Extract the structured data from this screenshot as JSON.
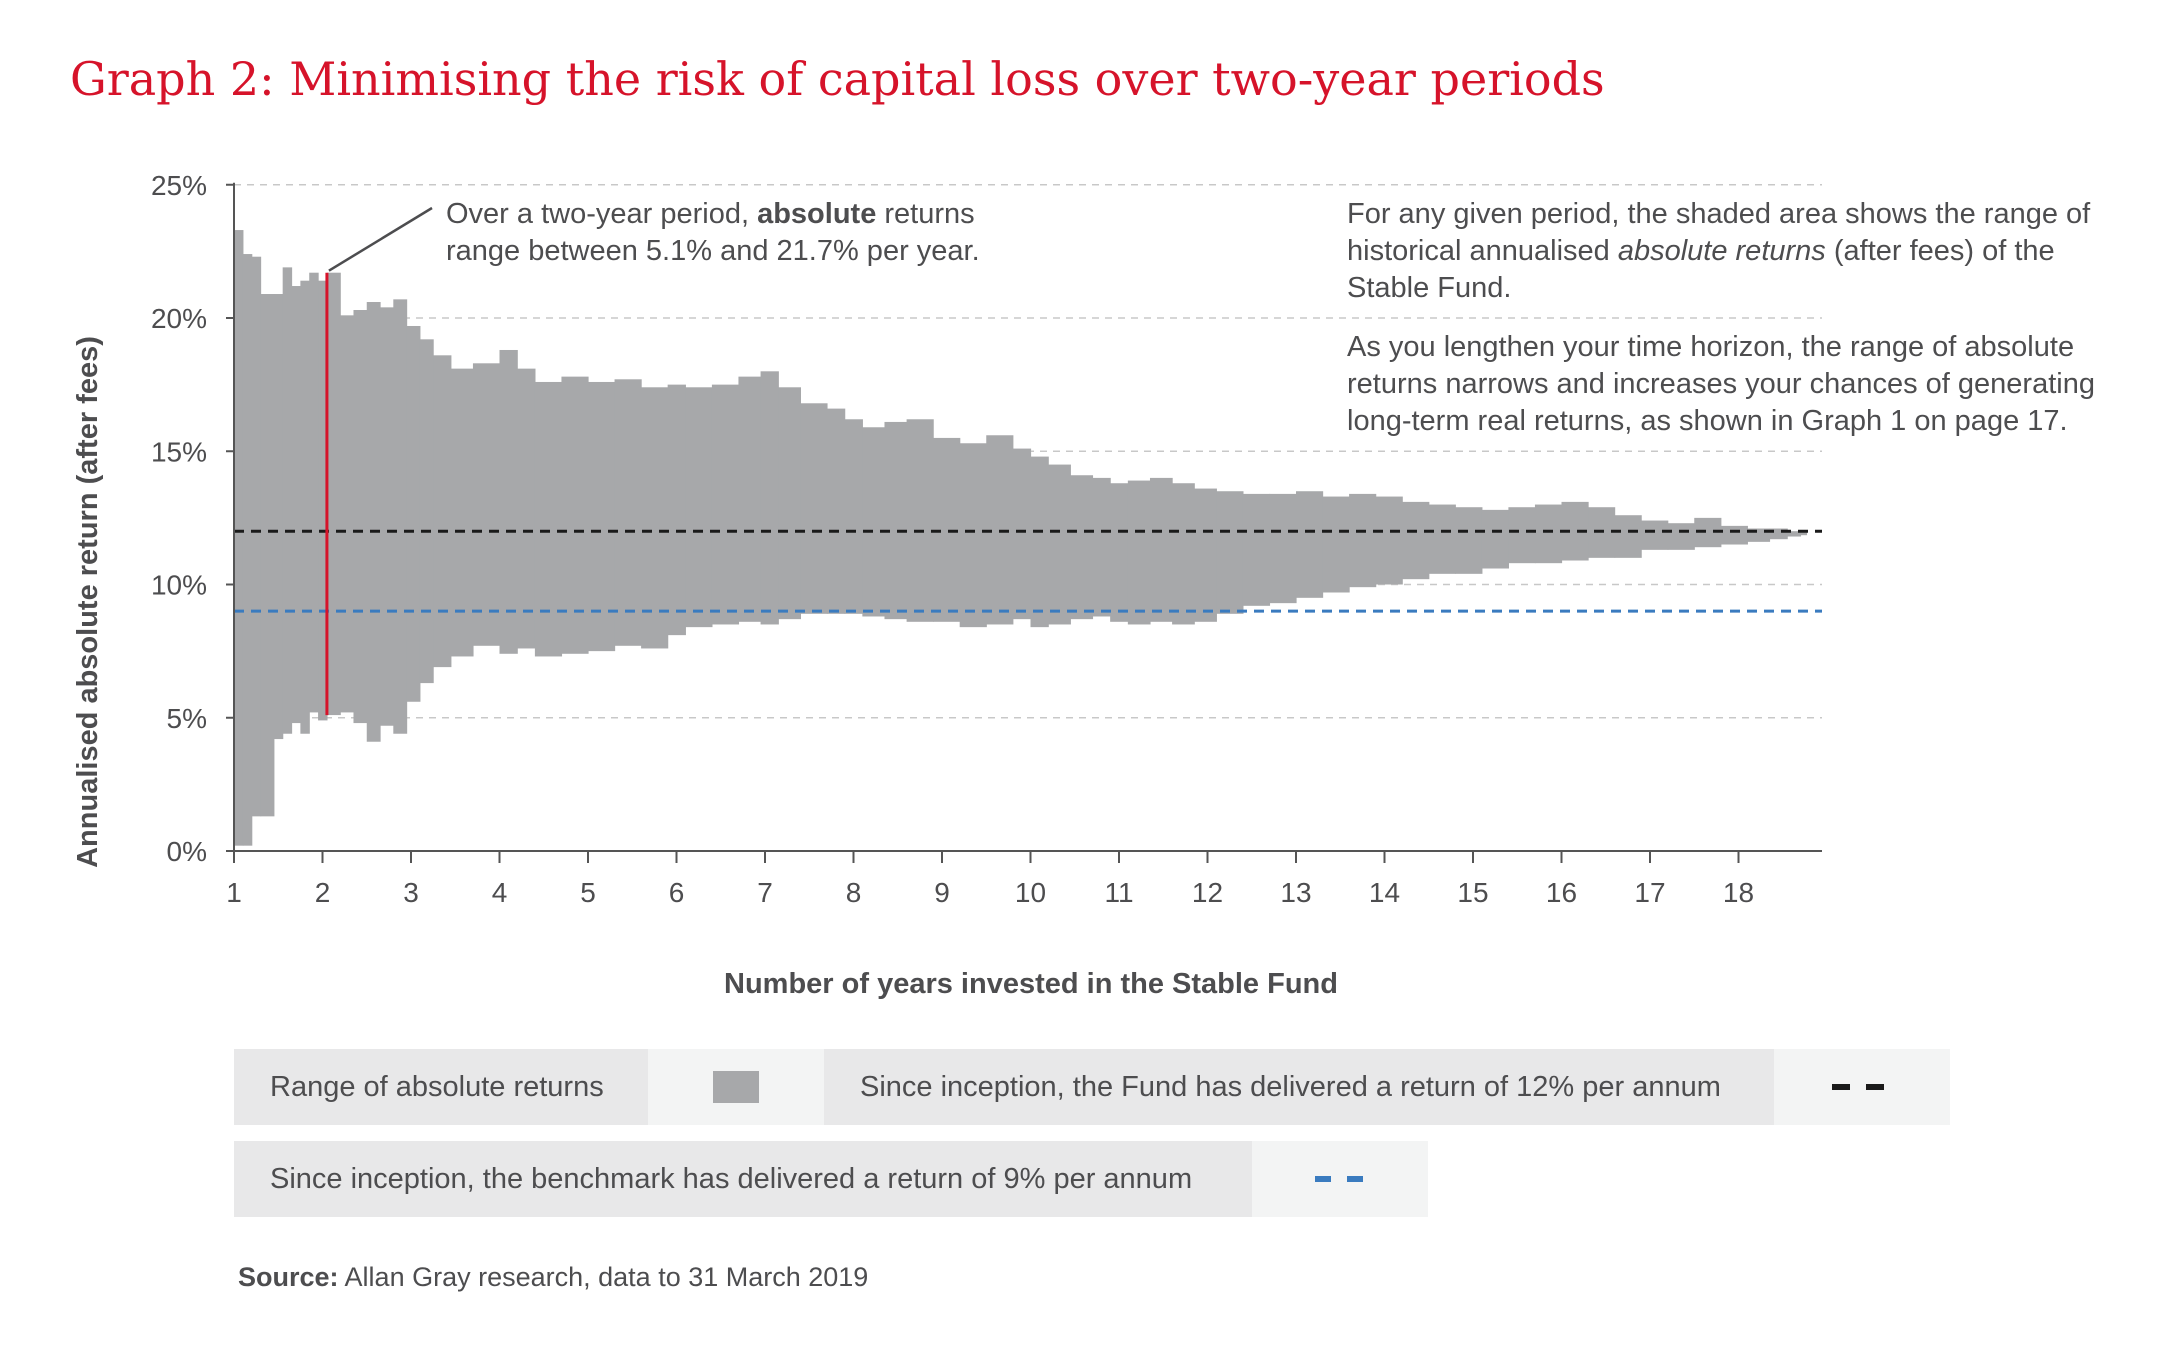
{
  "title": "Graph 2: Minimising the risk of capital loss over two-year periods",
  "annotations": {
    "callout_pre": "Over a two-year period, ",
    "callout_bold": "absolute",
    "callout_post": " returns range between 5.1% and 21.7% per year.",
    "right_p1_pre": "For any given period, the shaded area shows the range of historical annualised ",
    "right_p1_em": "absolute returns",
    "right_p1_post": " (after fees) of the Stable Fund.",
    "right_p2": "As you lengthen your time horizon, the range of absolute returns narrows and increases your chances of generating long-term real returns, as shown in Graph 1 on page 17."
  },
  "legend": {
    "range_label": "Range of absolute returns",
    "fund_label": "Since inception, the Fund has delivered a return of 12% per annum",
    "benchmark_label": "Since inception, the benchmark has delivered a return of 9% per annum"
  },
  "source": {
    "label": "Source:",
    "text": " Allan Gray research, data to 31 March 2019"
  },
  "colors": {
    "title": "#d6132a",
    "range_fill": "#a7a8aa",
    "fund_line": "#1a1a1a",
    "benchmark_line": "#3a7bbf",
    "highlight": "#d6132a",
    "text": "#4d4d4f",
    "grid": "#c8c8c8"
  },
  "chart_data": {
    "type": "area",
    "xlabel": "Number of years invested in the Stable Fund",
    "ylabel": "Annualised absolute return (after fees)",
    "xlim": [
      1,
      19
    ],
    "ylim": [
      0,
      25
    ],
    "xticks": [
      "1",
      "2",
      "3",
      "4",
      "5",
      "6",
      "7",
      "8",
      "9",
      "10",
      "11",
      "12",
      "13",
      "14",
      "15",
      "16",
      "17",
      "18"
    ],
    "yticks": [
      "0%",
      "5%",
      "10%",
      "15%",
      "20%",
      "25%"
    ],
    "grid": "horizontal dashed",
    "series": [
      {
        "name": "Range of absolute returns",
        "points": [
          {
            "x": 1.0,
            "max": 23.3,
            "min": 0.2
          },
          {
            "x": 1.1,
            "max": 22.4,
            "min": 0.2
          },
          {
            "x": 1.2,
            "max": 22.3,
            "min": 1.3
          },
          {
            "x": 1.3,
            "max": 20.9,
            "min": 1.3
          },
          {
            "x": 1.45,
            "max": 20.9,
            "min": 4.2
          },
          {
            "x": 1.55,
            "max": 21.9,
            "min": 4.4
          },
          {
            "x": 1.65,
            "max": 21.2,
            "min": 4.8
          },
          {
            "x": 1.75,
            "max": 21.4,
            "min": 4.4
          },
          {
            "x": 1.85,
            "max": 21.7,
            "min": 5.2
          },
          {
            "x": 1.95,
            "max": 21.4,
            "min": 4.9
          },
          {
            "x": 2.05,
            "max": 21.7,
            "min": 5.1
          },
          {
            "x": 2.2,
            "max": 20.1,
            "min": 5.2
          },
          {
            "x": 2.35,
            "max": 20.3,
            "min": 4.8
          },
          {
            "x": 2.5,
            "max": 20.6,
            "min": 4.1
          },
          {
            "x": 2.65,
            "max": 20.4,
            "min": 4.7
          },
          {
            "x": 2.8,
            "max": 20.7,
            "min": 4.4
          },
          {
            "x": 2.95,
            "max": 19.7,
            "min": 5.6
          },
          {
            "x": 3.1,
            "max": 19.2,
            "min": 6.3
          },
          {
            "x": 3.25,
            "max": 18.6,
            "min": 6.9
          },
          {
            "x": 3.45,
            "max": 18.1,
            "min": 7.3
          },
          {
            "x": 3.7,
            "max": 18.3,
            "min": 7.7
          },
          {
            "x": 4.0,
            "max": 18.8,
            "min": 7.4
          },
          {
            "x": 4.2,
            "max": 18.1,
            "min": 7.6
          },
          {
            "x": 4.4,
            "max": 17.6,
            "min": 7.3
          },
          {
            "x": 4.7,
            "max": 17.8,
            "min": 7.4
          },
          {
            "x": 5.0,
            "max": 17.6,
            "min": 7.5
          },
          {
            "x": 5.3,
            "max": 17.7,
            "min": 7.7
          },
          {
            "x": 5.6,
            "max": 17.4,
            "min": 7.6
          },
          {
            "x": 5.9,
            "max": 17.5,
            "min": 8.1
          },
          {
            "x": 6.1,
            "max": 17.4,
            "min": 8.4
          },
          {
            "x": 6.4,
            "max": 17.5,
            "min": 8.5
          },
          {
            "x": 6.7,
            "max": 17.8,
            "min": 8.6
          },
          {
            "x": 6.95,
            "max": 18.0,
            "min": 8.5
          },
          {
            "x": 7.15,
            "max": 17.4,
            "min": 8.7
          },
          {
            "x": 7.4,
            "max": 16.8,
            "min": 8.9
          },
          {
            "x": 7.7,
            "max": 16.6,
            "min": 8.9
          },
          {
            "x": 7.9,
            "max": 16.2,
            "min": 8.9
          },
          {
            "x": 8.1,
            "max": 15.9,
            "min": 8.8
          },
          {
            "x": 8.35,
            "max": 16.1,
            "min": 8.7
          },
          {
            "x": 8.6,
            "max": 16.2,
            "min": 8.6
          },
          {
            "x": 8.9,
            "max": 15.5,
            "min": 8.6
          },
          {
            "x": 9.2,
            "max": 15.3,
            "min": 8.4
          },
          {
            "x": 9.5,
            "max": 15.6,
            "min": 8.5
          },
          {
            "x": 9.8,
            "max": 15.1,
            "min": 8.7
          },
          {
            "x": 10.0,
            "max": 14.8,
            "min": 8.4
          },
          {
            "x": 10.2,
            "max": 14.5,
            "min": 8.5
          },
          {
            "x": 10.45,
            "max": 14.1,
            "min": 8.7
          },
          {
            "x": 10.7,
            "max": 14.0,
            "min": 8.8
          },
          {
            "x": 10.9,
            "max": 13.8,
            "min": 8.6
          },
          {
            "x": 11.1,
            "max": 13.9,
            "min": 8.5
          },
          {
            "x": 11.35,
            "max": 14.0,
            "min": 8.6
          },
          {
            "x": 11.6,
            "max": 13.8,
            "min": 8.5
          },
          {
            "x": 11.85,
            "max": 13.6,
            "min": 8.6
          },
          {
            "x": 12.1,
            "max": 13.5,
            "min": 8.9
          },
          {
            "x": 12.4,
            "max": 13.4,
            "min": 9.2
          },
          {
            "x": 12.7,
            "max": 13.4,
            "min": 9.3
          },
          {
            "x": 13.0,
            "max": 13.5,
            "min": 9.5
          },
          {
            "x": 13.3,
            "max": 13.3,
            "min": 9.7
          },
          {
            "x": 13.6,
            "max": 13.4,
            "min": 9.9
          },
          {
            "x": 13.9,
            "max": 13.3,
            "min": 10.0
          },
          {
            "x": 14.2,
            "max": 13.1,
            "min": 10.2
          },
          {
            "x": 14.5,
            "max": 13.0,
            "min": 10.4
          },
          {
            "x": 14.8,
            "max": 12.9,
            "min": 10.4
          },
          {
            "x": 15.1,
            "max": 12.8,
            "min": 10.6
          },
          {
            "x": 15.4,
            "max": 12.9,
            "min": 10.8
          },
          {
            "x": 15.7,
            "max": 13.0,
            "min": 10.8
          },
          {
            "x": 16.0,
            "max": 13.1,
            "min": 10.9
          },
          {
            "x": 16.3,
            "max": 12.9,
            "min": 11.0
          },
          {
            "x": 16.6,
            "max": 12.6,
            "min": 11.0
          },
          {
            "x": 16.9,
            "max": 12.4,
            "min": 11.3
          },
          {
            "x": 17.2,
            "max": 12.3,
            "min": 11.3
          },
          {
            "x": 17.5,
            "max": 12.5,
            "min": 11.4
          },
          {
            "x": 17.8,
            "max": 12.2,
            "min": 11.5
          },
          {
            "x": 18.1,
            "max": 12.1,
            "min": 11.6
          },
          {
            "x": 18.35,
            "max": 12.1,
            "min": 11.7
          },
          {
            "x": 18.55,
            "max": 12.0,
            "min": 11.8
          },
          {
            "x": 18.7,
            "max": 11.95,
            "min": 11.85
          }
        ]
      },
      {
        "name": "Since inception, the Fund has delivered a return of 12% per annum",
        "type": "line",
        "y": 12
      },
      {
        "name": "Since inception, the benchmark has delivered a return of 9% per annum",
        "type": "line",
        "y": 9
      }
    ],
    "highlight": {
      "x": 2.05,
      "min": 5.1,
      "max": 21.7
    },
    "legend_position": "bottom"
  }
}
